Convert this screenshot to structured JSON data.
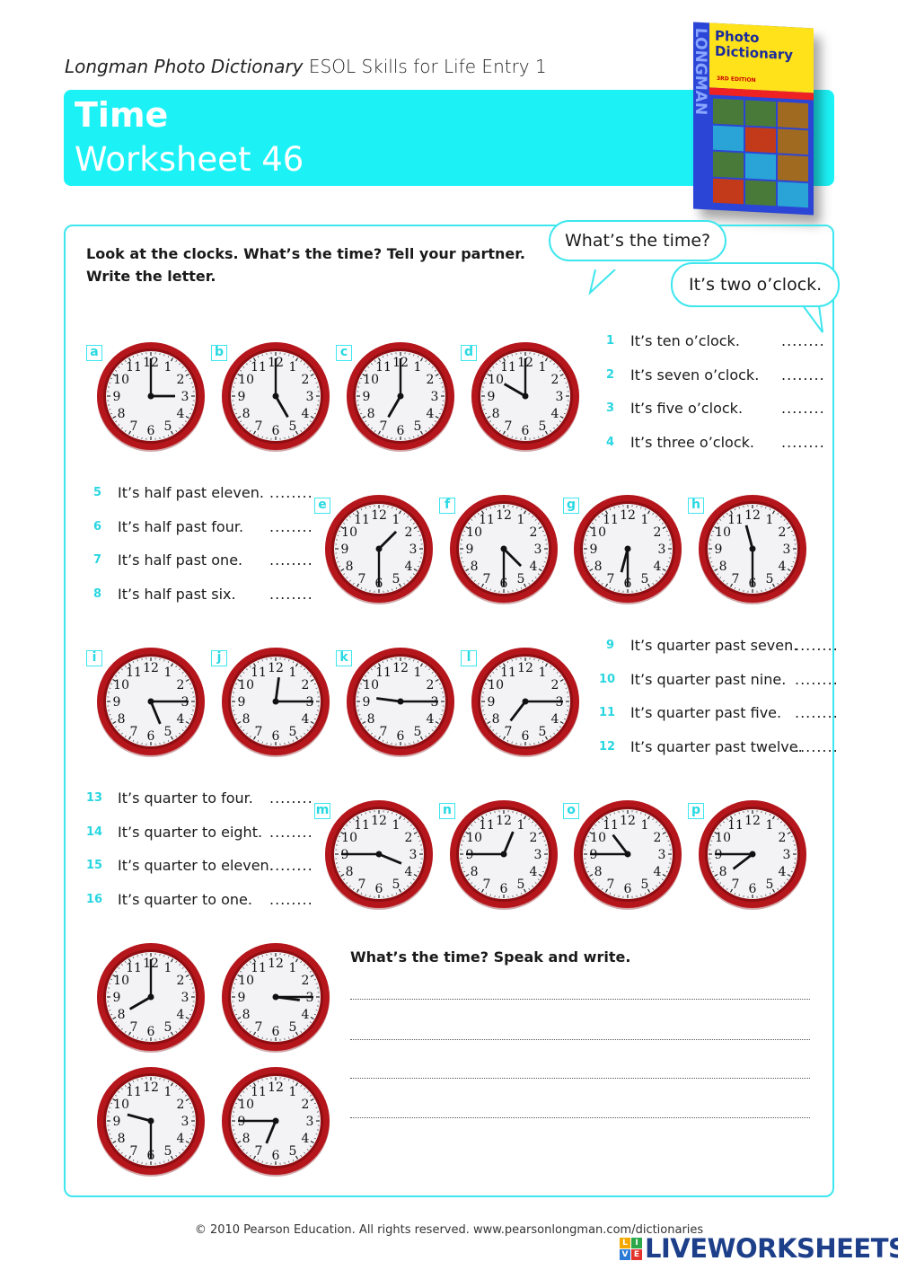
{
  "header": {
    "series_italic": "Longman Photo Dictionary",
    "series_rest": " ESOL Skills for Life Entry 1",
    "title": "Time",
    "subtitle": "Worksheet 46"
  },
  "book_cover": {
    "spine": "LONGMAN",
    "title_line1": "Photo",
    "title_line2": "Dictionary",
    "edition": "3RD EDITION"
  },
  "instructions": {
    "line1": "Look at the clocks. What’s the time? Tell your partner.",
    "line2": "Write the letter."
  },
  "bubbles": {
    "question": "What’s the time?",
    "answer": "It’s two o’clock."
  },
  "colors": {
    "accent": "#1cf2f6",
    "clock_rim": "#b5161c",
    "number_color": "#2ad6e0"
  },
  "clock_face": {
    "numerals": [
      "12",
      "1",
      "2",
      "3",
      "4",
      "5",
      "6",
      "7",
      "8",
      "9",
      "10",
      "11"
    ]
  },
  "clocks": [
    {
      "letter": "a",
      "time": "3:00"
    },
    {
      "letter": "b",
      "time": "5:00"
    },
    {
      "letter": "c",
      "time": "7:00"
    },
    {
      "letter": "d",
      "time": "10:00"
    },
    {
      "letter": "e",
      "time": "1:30"
    },
    {
      "letter": "f",
      "time": "4:30"
    },
    {
      "letter": "g",
      "time": "6:30"
    },
    {
      "letter": "h",
      "time": "11:30"
    },
    {
      "letter": "i",
      "time": "5:15"
    },
    {
      "letter": "j",
      "time": "12:15"
    },
    {
      "letter": "k",
      "time": "9:15"
    },
    {
      "letter": "l",
      "time": "7:15"
    },
    {
      "letter": "m",
      "time": "3:45"
    },
    {
      "letter": "n",
      "time": "12:45"
    },
    {
      "letter": "o",
      "time": "10:45"
    },
    {
      "letter": "p",
      "time": "7:45"
    },
    {
      "letter": "",
      "time": "8:00"
    },
    {
      "letter": "",
      "time": "3:15"
    },
    {
      "letter": "",
      "time": "9:30"
    },
    {
      "letter": "",
      "time": "6:45"
    }
  ],
  "questions": [
    {
      "num": "1",
      "text": "It’s ten o’clock.",
      "answer": "........"
    },
    {
      "num": "2",
      "text": "It’s seven o’clock.",
      "answer": "........"
    },
    {
      "num": "3",
      "text": "It’s five o’clock.",
      "answer": "........"
    },
    {
      "num": "4",
      "text": "It’s three o’clock.",
      "answer": "........"
    },
    {
      "num": "5",
      "text": "It’s half past eleven.",
      "answer": "........"
    },
    {
      "num": "6",
      "text": "It’s half past four.",
      "answer": "........"
    },
    {
      "num": "7",
      "text": "It’s half past one.",
      "answer": "........"
    },
    {
      "num": "8",
      "text": "It’s half past six.",
      "answer": "........"
    },
    {
      "num": "9",
      "text": "It’s quarter past seven.",
      "answer": "........"
    },
    {
      "num": "10",
      "text": "It’s quarter past nine.",
      "answer": "........"
    },
    {
      "num": "11",
      "text": "It’s quarter past five.",
      "answer": "........"
    },
    {
      "num": "12",
      "text": "It’s quarter past twelve.",
      "answer": "........"
    },
    {
      "num": "13",
      "text": "It’s quarter to four.",
      "answer": "........"
    },
    {
      "num": "14",
      "text": "It’s quarter to eight.",
      "answer": "........"
    },
    {
      "num": "15",
      "text": "It’s quarter to eleven.",
      "answer": "........"
    },
    {
      "num": "16",
      "text": "It’s quarter to one.",
      "answer": "........"
    }
  ],
  "speak_write": {
    "heading": "What’s the time? Speak and write."
  },
  "footer": {
    "copyright": "© 2010 Pearson Education. All rights reserved. www.pearsonlongman.com/dictionaries",
    "logo_letters": [
      "L",
      "I",
      "V",
      "E"
    ],
    "logo_text": "LIVEWORKSHEETS"
  }
}
